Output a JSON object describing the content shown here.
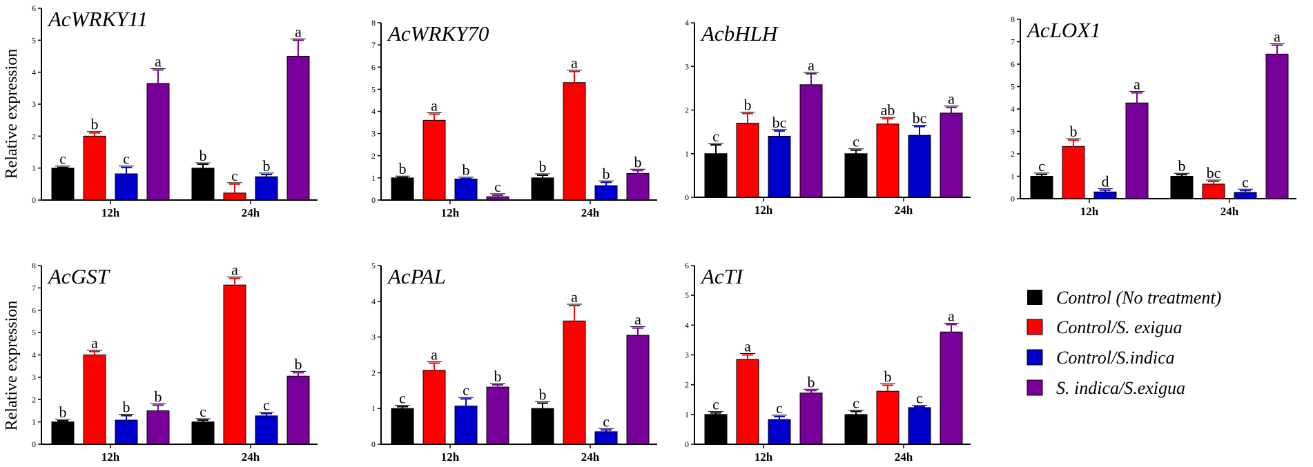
{
  "colors": {
    "Control (No treatment)": "#000000",
    "Control/S. exigua": "#ff0000",
    "Control/S.indica": "#0000cc",
    "S. indica/S.exigua": "#770099"
  },
  "legend": [
    "Control (No treatment)",
    "Control/S. exigua",
    "Control/S.indica",
    "S. indica/S.exigua"
  ],
  "ylabel": "Relative expression",
  "chart_data": [
    {
      "type": "bar",
      "title": "AcWRKY11",
      "categories": [
        "12h",
        "24h"
      ],
      "ylim": [
        0,
        6
      ],
      "yticks": [
        0,
        1,
        2,
        3,
        4,
        5,
        6
      ],
      "ylabel": "Relative expression",
      "series": [
        {
          "name": "Control (No treatment)",
          "values": [
            1.0,
            1.0
          ],
          "errors": [
            0.02,
            0.12
          ],
          "letters": [
            "c",
            "b"
          ]
        },
        {
          "name": "Control/S. exigua",
          "values": [
            2.0,
            0.22
          ],
          "errors": [
            0.1,
            0.28
          ],
          "letters": [
            "b",
            "c"
          ]
        },
        {
          "name": "Control/S.indica",
          "values": [
            0.82,
            0.73
          ],
          "errors": [
            0.2,
            0.07
          ],
          "letters": [
            "c",
            "b"
          ]
        },
        {
          "name": "S. indica/S.exigua",
          "values": [
            3.65,
            4.5
          ],
          "errors": [
            0.42,
            0.5
          ],
          "letters": [
            "a",
            "a"
          ]
        }
      ]
    },
    {
      "type": "bar",
      "title": "AcWRKY70",
      "categories": [
        "12h",
        "24h"
      ],
      "ylim": [
        0,
        8
      ],
      "yticks": [
        0,
        1,
        2,
        3,
        4,
        5,
        6,
        7,
        8
      ],
      "ylabel": "",
      "series": [
        {
          "name": "Control (No treatment)",
          "values": [
            1.0,
            1.0
          ],
          "errors": [
            0.02,
            0.12
          ],
          "letters": [
            "b",
            "b"
          ]
        },
        {
          "name": "Control/S. exigua",
          "values": [
            3.6,
            5.3
          ],
          "errors": [
            0.28,
            0.5
          ],
          "letters": [
            "a",
            "a"
          ]
        },
        {
          "name": "Control/S.indica",
          "values": [
            0.95,
            0.65
          ],
          "errors": [
            0.02,
            0.15
          ],
          "letters": [
            "b",
            "b"
          ]
        },
        {
          "name": "S. indica/S.exigua",
          "values": [
            0.15,
            1.2
          ],
          "errors": [
            0.07,
            0.13
          ],
          "letters": [
            "c",
            "b"
          ]
        }
      ]
    },
    {
      "type": "bar",
      "title": "AcbHLH",
      "categories": [
        "12h",
        "24h"
      ],
      "ylim": [
        0,
        4
      ],
      "yticks": [
        0,
        1,
        2,
        3,
        4
      ],
      "ylabel": "",
      "series": [
        {
          "name": "Control (No treatment)",
          "values": [
            1.0,
            1.0
          ],
          "errors": [
            0.2,
            0.08
          ],
          "letters": [
            "c",
            "c"
          ]
        },
        {
          "name": "Control/S. exigua",
          "values": [
            1.7,
            1.68
          ],
          "errors": [
            0.22,
            0.12
          ],
          "letters": [
            "b",
            "ab"
          ]
        },
        {
          "name": "Control/S.indica",
          "values": [
            1.4,
            1.42
          ],
          "errors": [
            0.12,
            0.2
          ],
          "letters": [
            "bc",
            "bc"
          ]
        },
        {
          "name": "S. indica/S.exigua",
          "values": [
            2.58,
            1.93
          ],
          "errors": [
            0.25,
            0.13
          ],
          "letters": [
            "a",
            "a"
          ]
        }
      ]
    },
    {
      "type": "bar",
      "title": "AcLOX1",
      "categories": [
        "12h",
        "24h"
      ],
      "ylim": [
        0,
        8
      ],
      "yticks": [
        0,
        1,
        2,
        3,
        4,
        5,
        6,
        7,
        8
      ],
      "ylabel": "",
      "series": [
        {
          "name": "Control (No treatment)",
          "values": [
            1.0,
            1.0
          ],
          "errors": [
            0.08,
            0.07
          ],
          "letters": [
            "c",
            "b"
          ]
        },
        {
          "name": "Control/S. exigua",
          "values": [
            2.33,
            0.65
          ],
          "errors": [
            0.28,
            0.12
          ],
          "letters": [
            "b",
            "bc"
          ]
        },
        {
          "name": "Control/S.indica",
          "values": [
            0.3,
            0.28
          ],
          "errors": [
            0.08,
            0.08
          ],
          "letters": [
            "d",
            "c"
          ]
        },
        {
          "name": "S. indica/S.exigua",
          "values": [
            4.27,
            6.45
          ],
          "errors": [
            0.45,
            0.4
          ],
          "letters": [
            "a",
            "a"
          ]
        }
      ]
    },
    {
      "type": "bar",
      "title": "AcGST",
      "categories": [
        "12h",
        "24h"
      ],
      "ylim": [
        0,
        8
      ],
      "yticks": [
        0,
        1,
        2,
        3,
        4,
        5,
        6,
        7,
        8
      ],
      "ylabel": "Relative expression",
      "series": [
        {
          "name": "Control (No treatment)",
          "values": [
            1.0,
            1.0
          ],
          "errors": [
            0.05,
            0.08
          ],
          "letters": [
            "b",
            "c"
          ]
        },
        {
          "name": "Control/S. exigua",
          "values": [
            4.0,
            7.13
          ],
          "errors": [
            0.15,
            0.3
          ],
          "letters": [
            "a",
            "a"
          ]
        },
        {
          "name": "Control/S.indica",
          "values": [
            1.08,
            1.27
          ],
          "errors": [
            0.2,
            0.1
          ],
          "letters": [
            "b",
            "c"
          ]
        },
        {
          "name": "S. indica/S.exigua",
          "values": [
            1.5,
            3.05
          ],
          "errors": [
            0.25,
            0.15
          ],
          "letters": [
            "b",
            "b"
          ]
        }
      ]
    },
    {
      "type": "bar",
      "title": "AcPAL",
      "categories": [
        "12h",
        "24h"
      ],
      "ylim": [
        0,
        5
      ],
      "yticks": [
        0,
        1,
        2,
        3,
        4,
        5
      ],
      "ylabel": "",
      "series": [
        {
          "name": "Control (No treatment)",
          "values": [
            1.0,
            1.0
          ],
          "errors": [
            0.05,
            0.15
          ],
          "letters": [
            "c",
            "b"
          ]
        },
        {
          "name": "Control/S. exigua",
          "values": [
            2.07,
            3.45
          ],
          "errors": [
            0.2,
            0.43
          ],
          "letters": [
            "a",
            "a"
          ]
        },
        {
          "name": "Control/S.indica",
          "values": [
            1.07,
            0.35
          ],
          "errors": [
            0.2,
            0.05
          ],
          "letters": [
            "c",
            "c"
          ]
        },
        {
          "name": "S. indica/S.exigua",
          "values": [
            1.6,
            3.05
          ],
          "errors": [
            0.06,
            0.2
          ],
          "letters": [
            "b",
            "a"
          ]
        }
      ]
    },
    {
      "type": "bar",
      "title": "AcTI",
      "categories": [
        "12h",
        "24h"
      ],
      "ylim": [
        0,
        6
      ],
      "yticks": [
        0,
        1,
        2,
        3,
        4,
        5,
        6
      ],
      "ylabel": "",
      "series": [
        {
          "name": "Control (No treatment)",
          "values": [
            1.0,
            1.0
          ],
          "errors": [
            0.05,
            0.1
          ],
          "letters": [
            "c",
            "c"
          ]
        },
        {
          "name": "Control/S. exigua",
          "values": [
            2.85,
            1.78
          ],
          "errors": [
            0.15,
            0.2
          ],
          "letters": [
            "a",
            "b"
          ]
        },
        {
          "name": "Control/S.indica",
          "values": [
            0.83,
            1.23
          ],
          "errors": [
            0.1,
            0.03
          ],
          "letters": [
            "c",
            "c"
          ]
        },
        {
          "name": "S. indica/S.exigua",
          "values": [
            1.72,
            3.77
          ],
          "errors": [
            0.08,
            0.25
          ],
          "letters": [
            "b",
            "a"
          ]
        }
      ]
    }
  ]
}
